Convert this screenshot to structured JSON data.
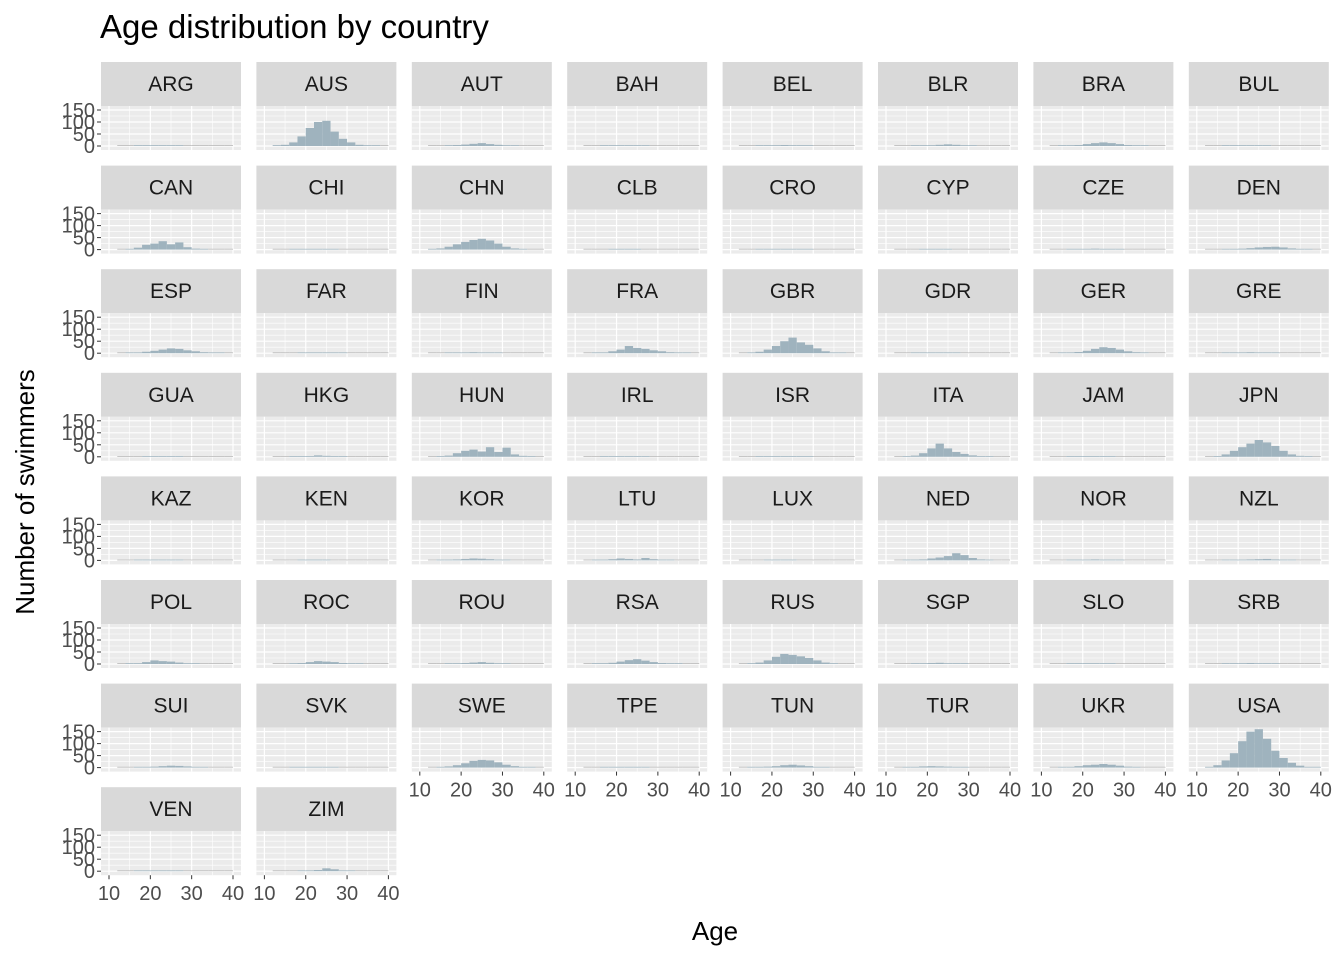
{
  "chart_data": {
    "type": "bar",
    "title": "Age distribution by country",
    "xlabel": "Age",
    "ylabel": "Number of swimmers",
    "xlim": [
      10,
      40
    ],
    "ylim": [
      0,
      150
    ],
    "x_ticks": [
      10,
      20,
      30,
      40
    ],
    "y_ticks": [
      0,
      50,
      100,
      150
    ],
    "grid": true,
    "bin_start": 12,
    "bin_width": 2,
    "bar_color": "#9fb3be",
    "panel_background": "#ebebeb",
    "strip_background": "#d9d9d9",
    "facets": [
      {
        "name": "ARG",
        "values": [
          0,
          0,
          2,
          3,
          2,
          2,
          1,
          1,
          0,
          0,
          0,
          0,
          0,
          0
        ]
      },
      {
        "name": "AUS",
        "values": [
          1,
          5,
          15,
          40,
          75,
          100,
          105,
          60,
          30,
          15,
          5,
          2,
          1,
          0
        ]
      },
      {
        "name": "AUT",
        "values": [
          0,
          0,
          2,
          4,
          6,
          9,
          12,
          8,
          5,
          2,
          1,
          0,
          0,
          0
        ]
      },
      {
        "name": "BAH",
        "values": [
          0,
          0,
          1,
          1,
          2,
          2,
          1,
          1,
          0,
          0,
          0,
          0,
          0,
          0
        ]
      },
      {
        "name": "BEL",
        "values": [
          0,
          0,
          1,
          2,
          3,
          4,
          3,
          2,
          1,
          0,
          0,
          0,
          0,
          0
        ]
      },
      {
        "name": "BLR",
        "values": [
          0,
          0,
          1,
          2,
          3,
          5,
          7,
          5,
          3,
          1,
          0,
          0,
          0,
          0
        ]
      },
      {
        "name": "BRA",
        "values": [
          0,
          1,
          2,
          4,
          8,
          12,
          15,
          12,
          8,
          4,
          2,
          1,
          0,
          0
        ]
      },
      {
        "name": "BUL",
        "values": [
          0,
          0,
          1,
          2,
          3,
          3,
          2,
          1,
          0,
          0,
          0,
          0,
          0,
          0
        ]
      },
      {
        "name": "CAN",
        "values": [
          0,
          3,
          8,
          20,
          25,
          35,
          22,
          30,
          10,
          4,
          2,
          0,
          0,
          0
        ]
      },
      {
        "name": "CHI",
        "values": [
          0,
          0,
          1,
          1,
          2,
          2,
          1,
          1,
          0,
          0,
          0,
          0,
          0,
          0
        ]
      },
      {
        "name": "CHN",
        "values": [
          2,
          5,
          12,
          22,
          32,
          40,
          45,
          38,
          25,
          12,
          5,
          2,
          0,
          0
        ]
      },
      {
        "name": "CLB",
        "values": [
          0,
          0,
          0,
          1,
          1,
          1,
          1,
          0,
          0,
          0,
          0,
          0,
          0,
          0
        ]
      },
      {
        "name": "CRO",
        "values": [
          0,
          0,
          1,
          1,
          2,
          3,
          2,
          1,
          1,
          0,
          0,
          0,
          0,
          0
        ]
      },
      {
        "name": "CYP",
        "values": [
          0,
          0,
          0,
          1,
          1,
          1,
          1,
          0,
          0,
          0,
          0,
          0,
          0,
          0
        ]
      },
      {
        "name": "CZE",
        "values": [
          0,
          0,
          1,
          2,
          3,
          4,
          3,
          2,
          1,
          0,
          0,
          0,
          0,
          0
        ]
      },
      {
        "name": "DEN",
        "values": [
          0,
          0,
          1,
          2,
          4,
          6,
          9,
          11,
          12,
          9,
          5,
          2,
          1,
          0
        ]
      },
      {
        "name": "ESP",
        "values": [
          0,
          1,
          3,
          6,
          10,
          15,
          20,
          18,
          12,
          8,
          4,
          2,
          1,
          0
        ]
      },
      {
        "name": "FAR",
        "values": [
          0,
          0,
          0,
          1,
          2,
          3,
          2,
          1,
          1,
          0,
          0,
          0,
          0,
          0
        ]
      },
      {
        "name": "FIN",
        "values": [
          0,
          0,
          1,
          2,
          3,
          4,
          3,
          2,
          1,
          0,
          0,
          0,
          0,
          0
        ]
      },
      {
        "name": "FRA",
        "values": [
          0,
          1,
          3,
          8,
          15,
          30,
          22,
          18,
          12,
          8,
          4,
          2,
          1,
          0
        ]
      },
      {
        "name": "GBR",
        "values": [
          0,
          2,
          6,
          15,
          30,
          50,
          65,
          45,
          35,
          20,
          8,
          3,
          1,
          0
        ]
      },
      {
        "name": "GDR",
        "values": [
          0,
          0,
          1,
          2,
          3,
          3,
          2,
          1,
          0,
          0,
          0,
          0,
          0,
          0
        ]
      },
      {
        "name": "GER",
        "values": [
          0,
          1,
          2,
          5,
          10,
          18,
          25,
          22,
          15,
          8,
          4,
          2,
          0,
          0
        ]
      },
      {
        "name": "GRE",
        "values": [
          0,
          0,
          1,
          2,
          3,
          4,
          3,
          2,
          1,
          0,
          0,
          0,
          0,
          0
        ]
      },
      {
        "name": "GUA",
        "values": [
          0,
          0,
          0,
          1,
          1,
          2,
          1,
          1,
          0,
          0,
          0,
          0,
          0,
          0
        ]
      },
      {
        "name": "HKG",
        "values": [
          0,
          0,
          1,
          2,
          3,
          6,
          4,
          2,
          1,
          0,
          0,
          0,
          0,
          0
        ]
      },
      {
        "name": "HUN",
        "values": [
          0,
          2,
          5,
          15,
          25,
          30,
          22,
          40,
          20,
          38,
          10,
          4,
          1,
          0
        ]
      },
      {
        "name": "IRL",
        "values": [
          0,
          0,
          1,
          1,
          2,
          3,
          2,
          1,
          0,
          0,
          0,
          0,
          0,
          0
        ]
      },
      {
        "name": "ISR",
        "values": [
          0,
          0,
          1,
          2,
          3,
          3,
          2,
          1,
          1,
          0,
          0,
          0,
          0,
          0
        ]
      },
      {
        "name": "ITA",
        "values": [
          0,
          2,
          5,
          15,
          35,
          55,
          35,
          20,
          12,
          6,
          3,
          1,
          0,
          0
        ]
      },
      {
        "name": "JAM",
        "values": [
          0,
          0,
          1,
          1,
          2,
          3,
          2,
          1,
          0,
          0,
          0,
          0,
          0,
          0
        ]
      },
      {
        "name": "JPN",
        "values": [
          0,
          3,
          10,
          25,
          40,
          55,
          70,
          60,
          45,
          25,
          10,
          4,
          2,
          0
        ]
      },
      {
        "name": "KAZ",
        "values": [
          0,
          0,
          1,
          2,
          3,
          3,
          2,
          1,
          0,
          0,
          0,
          0,
          0,
          0
        ]
      },
      {
        "name": "KEN",
        "values": [
          0,
          0,
          0,
          1,
          1,
          1,
          1,
          0,
          0,
          0,
          0,
          0,
          0,
          0
        ]
      },
      {
        "name": "KOR",
        "values": [
          0,
          1,
          2,
          4,
          6,
          8,
          7,
          5,
          3,
          1,
          0,
          0,
          0,
          0
        ]
      },
      {
        "name": "LTU",
        "values": [
          0,
          1,
          3,
          5,
          8,
          6,
          4,
          10,
          5,
          2,
          1,
          0,
          0,
          0
        ]
      },
      {
        "name": "LUX",
        "values": [
          0,
          0,
          0,
          1,
          1,
          1,
          1,
          0,
          0,
          0,
          0,
          0,
          0,
          0
        ]
      },
      {
        "name": "NED",
        "values": [
          0,
          1,
          2,
          4,
          8,
          12,
          18,
          30,
          22,
          10,
          4,
          1,
          0,
          0
        ]
      },
      {
        "name": "NOR",
        "values": [
          0,
          0,
          1,
          2,
          3,
          4,
          3,
          2,
          1,
          0,
          0,
          0,
          0,
          0
        ]
      },
      {
        "name": "NZL",
        "values": [
          0,
          0,
          1,
          2,
          3,
          4,
          5,
          6,
          4,
          2,
          1,
          0,
          0,
          0
        ]
      },
      {
        "name": "POL",
        "values": [
          0,
          1,
          3,
          8,
          15,
          12,
          10,
          6,
          3,
          1,
          0,
          0,
          0,
          0
        ]
      },
      {
        "name": "ROC",
        "values": [
          0,
          0,
          2,
          4,
          8,
          12,
          10,
          8,
          4,
          2,
          1,
          0,
          0,
          0
        ]
      },
      {
        "name": "ROU",
        "values": [
          0,
          0,
          1,
          2,
          4,
          6,
          8,
          5,
          3,
          1,
          0,
          0,
          0,
          0
        ]
      },
      {
        "name": "RSA",
        "values": [
          0,
          1,
          2,
          5,
          10,
          16,
          20,
          14,
          8,
          4,
          2,
          1,
          0,
          0
        ]
      },
      {
        "name": "RUS",
        "values": [
          0,
          2,
          6,
          15,
          30,
          42,
          38,
          32,
          25,
          15,
          6,
          2,
          0,
          0
        ]
      },
      {
        "name": "SGP",
        "values": [
          0,
          0,
          1,
          2,
          4,
          5,
          3,
          2,
          1,
          0,
          0,
          0,
          0,
          0
        ]
      },
      {
        "name": "SLO",
        "values": [
          0,
          0,
          1,
          2,
          3,
          3,
          2,
          1,
          0,
          0,
          0,
          0,
          0,
          0
        ]
      },
      {
        "name": "SRB",
        "values": [
          0,
          0,
          1,
          2,
          3,
          4,
          3,
          2,
          1,
          0,
          0,
          0,
          0,
          0
        ]
      },
      {
        "name": "SUI",
        "values": [
          0,
          0,
          1,
          2,
          4,
          6,
          8,
          7,
          5,
          2,
          1,
          0,
          0,
          0
        ]
      },
      {
        "name": "SVK",
        "values": [
          0,
          0,
          1,
          2,
          2,
          2,
          1,
          1,
          0,
          0,
          0,
          0,
          0,
          0
        ]
      },
      {
        "name": "SWE",
        "values": [
          0,
          2,
          5,
          10,
          18,
          28,
          32,
          30,
          22,
          12,
          6,
          2,
          1,
          0
        ]
      },
      {
        "name": "TPE",
        "values": [
          0,
          0,
          1,
          1,
          2,
          2,
          1,
          1,
          0,
          0,
          0,
          0,
          0,
          0
        ]
      },
      {
        "name": "TUN",
        "values": [
          0,
          1,
          2,
          4,
          6,
          10,
          12,
          9,
          6,
          3,
          1,
          0,
          0,
          0
        ]
      },
      {
        "name": "TUR",
        "values": [
          0,
          1,
          3,
          5,
          6,
          5,
          4,
          2,
          1,
          0,
          0,
          0,
          0,
          0
        ]
      },
      {
        "name": "UKR",
        "values": [
          0,
          1,
          3,
          6,
          10,
          12,
          15,
          12,
          8,
          4,
          2,
          0,
          0,
          0
        ]
      },
      {
        "name": "USA",
        "values": [
          3,
          10,
          30,
          60,
          110,
          150,
          160,
          120,
          70,
          40,
          20,
          8,
          3,
          1
        ]
      },
      {
        "name": "VEN",
        "values": [
          0,
          0,
          1,
          2,
          3,
          3,
          2,
          1,
          0,
          0,
          0,
          0,
          0,
          0
        ]
      },
      {
        "name": "ZIM",
        "values": [
          0,
          0,
          0,
          1,
          2,
          5,
          12,
          8,
          3,
          1,
          0,
          0,
          0,
          0
        ]
      }
    ]
  }
}
